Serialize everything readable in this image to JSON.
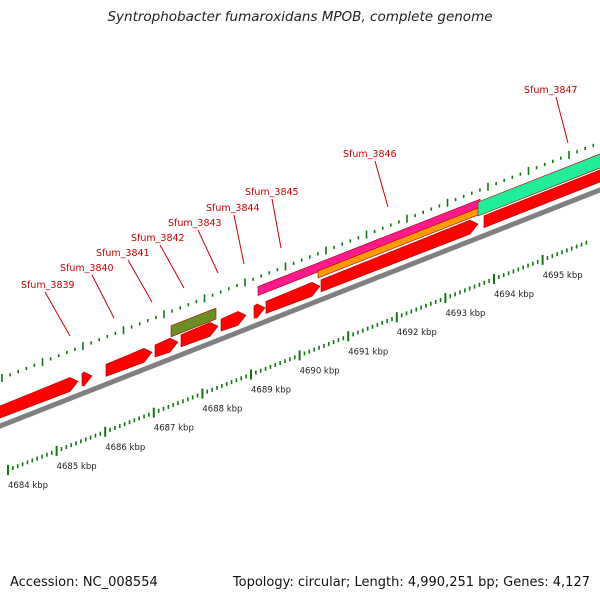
{
  "title": "Syntrophobacter fumaroxidans MPOB, complete genome",
  "footer": {
    "accession": "Accession: NC_008554",
    "topology": "Topology: circular; Length: 4,990,251 bp; Genes: 4,127"
  },
  "colors": {
    "gene": "#ff0000",
    "gene_dark": "#b00000",
    "magenta": "#ff1a8c",
    "orange": "#ff9900",
    "teal": "#22ee99",
    "olive": "#6b8e23",
    "backbone": "#808080",
    "tick": "#117711",
    "label": "#cc0000"
  },
  "scale": {
    "labels": [
      "4684 kbp",
      "4685 kbp",
      "4686 kbp",
      "4687 kbp",
      "4688 kbp",
      "4689 kbp",
      "4690 kbp",
      "4691 kbp",
      "4692 kbp",
      "4693 kbp",
      "4694 kbp",
      "4695 kbp"
    ]
  },
  "genes": [
    {
      "name": "Sfum_3839"
    },
    {
      "name": "Sfum_3840"
    },
    {
      "name": "Sfum_3841"
    },
    {
      "name": "Sfum_3842"
    },
    {
      "name": "Sfum_3843"
    },
    {
      "name": "Sfum_3844"
    },
    {
      "name": "Sfum_3845"
    },
    {
      "name": "Sfum_3846"
    },
    {
      "name": "Sfum_3847"
    }
  ]
}
